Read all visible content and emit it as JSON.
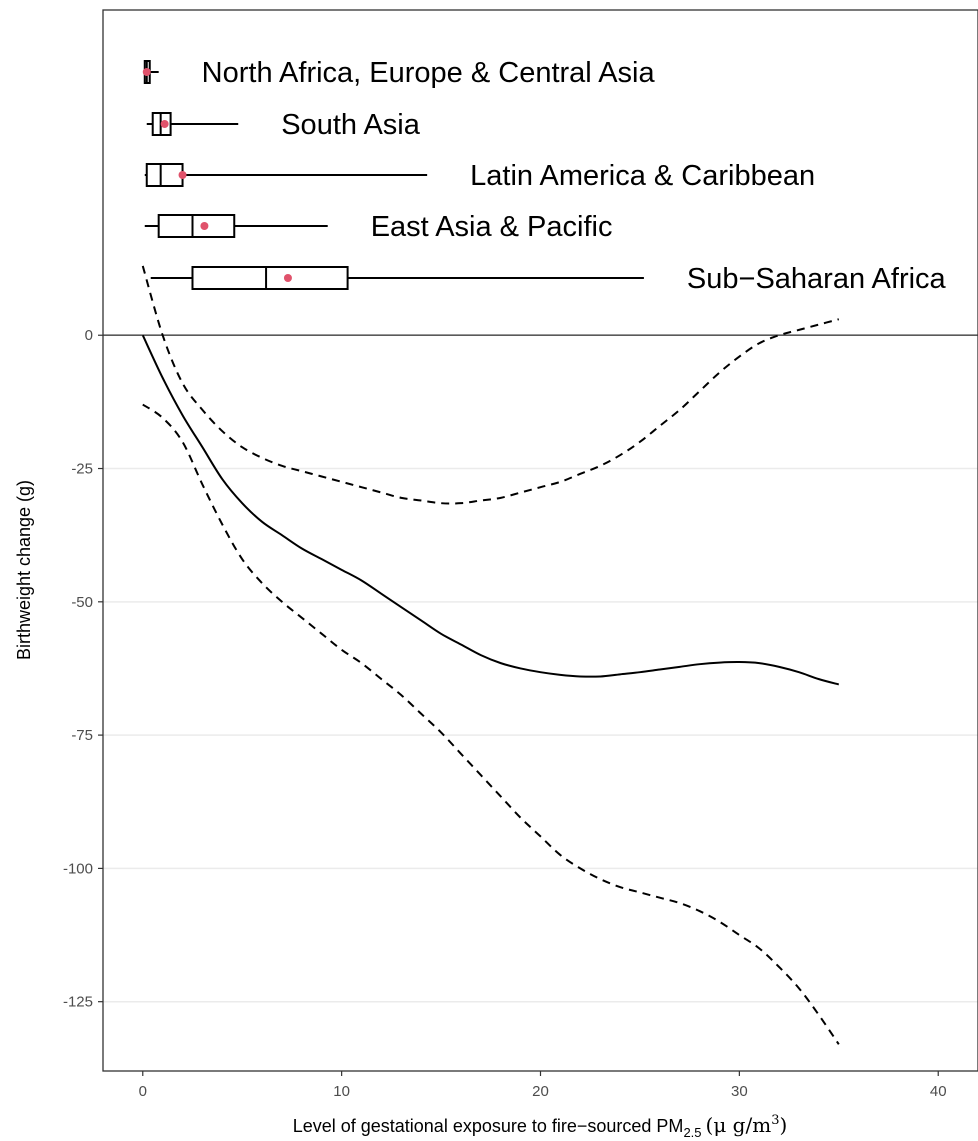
{
  "chart_data": {
    "type": "line",
    "xlabel": "Level of gestational exposure to fire−sourced PM",
    "xlabel_sub": "2.5",
    "xlabel_unit": "(μ g/m",
    "xlabel_unit_sup": "3",
    "xlabel_unit_close": ")",
    "ylabel": "Birthweight change (g)",
    "xlim": [
      -2,
      42
    ],
    "ylim": [
      -138,
      61
    ],
    "x_ticks": [
      0,
      10,
      20,
      30,
      40
    ],
    "y_ticks": [
      0,
      -25,
      -50,
      -75,
      -100,
      -125
    ],
    "grid": "horizontal",
    "reference_line_y": 0,
    "series": [
      {
        "style": "solid",
        "x": [
          0,
          1,
          2,
          3,
          4,
          5,
          6,
          7,
          8,
          9,
          10,
          11,
          12,
          13,
          14,
          15,
          16,
          17,
          18,
          19,
          20,
          21,
          22,
          23,
          24,
          25,
          26,
          27,
          28,
          29,
          30,
          31,
          32,
          33,
          34,
          35
        ],
        "y": [
          0,
          -8,
          -15,
          -21,
          -27,
          -31.5,
          -35,
          -37.5,
          -40,
          -42,
          -44,
          -46,
          -48.5,
          -51,
          -53.5,
          -56,
          -58,
          -60,
          -61.5,
          -62.5,
          -63.2,
          -63.7,
          -64,
          -64,
          -63.6,
          -63.2,
          -62.7,
          -62.2,
          -61.7,
          -61.4,
          -61.3,
          -61.5,
          -62.2,
          -63.2,
          -64.5,
          -65.5
        ]
      },
      {
        "style": "dashed",
        "x": [
          0,
          1,
          2,
          3,
          4,
          5,
          6,
          7,
          8,
          9,
          10,
          11,
          12,
          13,
          14,
          15,
          16,
          17,
          18,
          19,
          20,
          21,
          22,
          23,
          24,
          25,
          26,
          27,
          28,
          29,
          30,
          31,
          32,
          33,
          34,
          35
        ],
        "y": [
          13,
          0,
          -9,
          -14,
          -18,
          -21,
          -23,
          -24.5,
          -25.5,
          -26.5,
          -27.5,
          -28.5,
          -29.5,
          -30.5,
          -31,
          -31.5,
          -31.5,
          -31,
          -30.5,
          -29.5,
          -28.5,
          -27.5,
          -26,
          -24.5,
          -22.5,
          -20,
          -17,
          -14,
          -10.5,
          -7,
          -4,
          -1.5,
          0,
          1,
          2,
          3
        ]
      },
      {
        "style": "dashed",
        "x": [
          0,
          1,
          2,
          3,
          4,
          5,
          6,
          7,
          8,
          9,
          10,
          11,
          12,
          13,
          14,
          15,
          16,
          17,
          18,
          19,
          20,
          21,
          22,
          23,
          24,
          25,
          26,
          27,
          28,
          29,
          30,
          31,
          32,
          33,
          34,
          35
        ],
        "y": [
          -13,
          -15.5,
          -20,
          -28,
          -35.5,
          -42,
          -46.5,
          -50,
          -53,
          -56,
          -59,
          -61.5,
          -64.5,
          -67.5,
          -71,
          -74.5,
          -78.5,
          -82.5,
          -86.5,
          -90.5,
          -94,
          -97.5,
          -100,
          -102,
          -103.5,
          -104.5,
          -105.5,
          -106.5,
          -108,
          -110,
          -112.5,
          -115,
          -118.5,
          -122.5,
          -127.5,
          -133
        ]
      }
    ],
    "boxplots": [
      {
        "label": "North Africa, Europe & Central Asia",
        "min": 0.05,
        "q1": 0.1,
        "median": 0.2,
        "q3": 0.35,
        "max": 0.8,
        "mean": 0.2
      },
      {
        "label": "South Asia",
        "min": 0.2,
        "q1": 0.5,
        "median": 0.9,
        "q3": 1.4,
        "max": 4.8,
        "mean": 1.1
      },
      {
        "label": "Latin America & Caribbean",
        "min": 0.1,
        "q1": 0.2,
        "median": 0.9,
        "q3": 2.0,
        "max": 14.3,
        "mean": 2.0
      },
      {
        "label": "East Asia & Pacific",
        "min": 0.1,
        "q1": 0.8,
        "median": 2.5,
        "q3": 4.6,
        "max": 9.3,
        "mean": 3.1
      },
      {
        "label": "Sub−Saharan Africa",
        "min": 0.4,
        "q1": 2.5,
        "median": 6.2,
        "q3": 10.3,
        "max": 25.2,
        "mean": 7.3
      }
    ],
    "colors": {
      "line": "#000000",
      "mean_point": "#e0526b",
      "grid": "#ebebeb",
      "zero_line": "#595959",
      "panel_border": "#333333"
    }
  }
}
